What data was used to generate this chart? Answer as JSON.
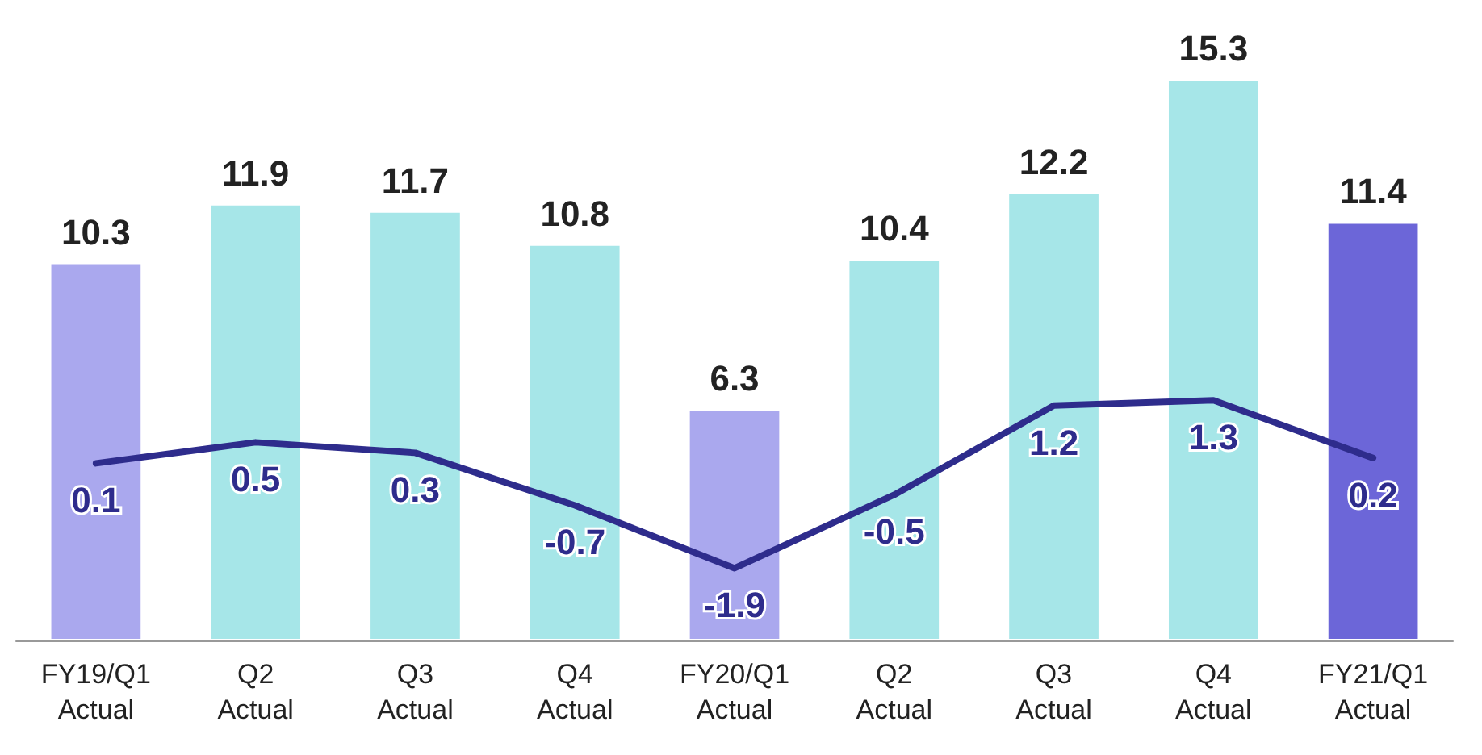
{
  "chart_data": {
    "type": "bar",
    "categories": [
      "FY19/Q1\nActual",
      "Q2\nActual",
      "Q3\nActual",
      "Q4\nActual",
      "FY20/Q1\nActual",
      "Q2\nActual",
      "Q3\nActual",
      "Q4\nActual",
      "FY21/Q1\nActual"
    ],
    "series": [
      {
        "colors": [
          "#aaa8ee",
          "#a6e6e8",
          "#a6e6e8",
          "#a6e6e8",
          "#aaa8ee",
          "#a6e6e8",
          "#a6e6e8",
          "#a6e6e8",
          "#6c66d8"
        ],
        "values": [
          10.3,
          11.9,
          11.7,
          10.8,
          6.3,
          10.4,
          12.2,
          15.3,
          11.4
        ]
      },
      {
        "type": "line",
        "axis": "y2",
        "color": "#2e2c8c",
        "values": [
          0.1,
          0.5,
          0.3,
          -0.7,
          -1.9,
          -0.5,
          1.2,
          1.3,
          0.2
        ]
      }
    ],
    "tick_labels": "x",
    "data_labels": true,
    "marker": "none",
    "line_style": "solid"
  }
}
